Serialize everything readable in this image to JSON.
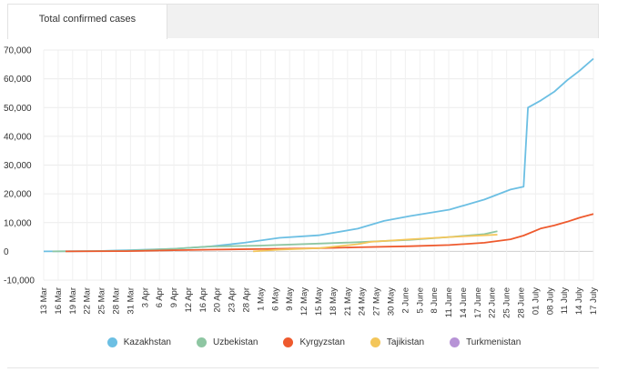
{
  "tabs": {
    "active_label": "Total confirmed cases"
  },
  "chart_data": {
    "type": "line",
    "ylim": [
      -10000,
      70000
    ],
    "yticks": [
      -10000,
      0,
      10000,
      20000,
      30000,
      40000,
      50000,
      60000,
      70000
    ],
    "ytick_labels": [
      "-10,000",
      "0",
      "10,000",
      "20,000",
      "30,000",
      "40,000",
      "50,000",
      "60,000",
      "70,000"
    ],
    "x_range": [
      "2020-03-13",
      "2020-07-17"
    ],
    "xtick_labels": [
      "13 Mar",
      "16 Mar",
      "19 Mar",
      "22 Mar",
      "25 Mar",
      "28 Mar",
      "31 Mar",
      "3 Apr",
      "6 Apr",
      "9 Apr",
      "12 Apr",
      "16 Apr",
      "20 Apr",
      "23 Apr",
      "28 Apr",
      "1 May",
      "6 May",
      "9 May",
      "12 May",
      "15 May",
      "18 May",
      "21 May",
      "24 May",
      "27 May",
      "30 May",
      "2 June",
      "5 June",
      "8 June",
      "11 June",
      "14 June",
      "17 June",
      "22 June",
      "25 June",
      "28 June",
      "01 July",
      "08 July",
      "11 July",
      "14 July",
      "17 July"
    ],
    "grid": true,
    "legend_position": "bottom",
    "series": [
      {
        "name": "Kazakhstan",
        "color": "#6cbfe3",
        "points": [
          [
            "2020-03-13",
            0
          ],
          [
            "2020-03-25",
            100
          ],
          [
            "2020-04-01",
            400
          ],
          [
            "2020-04-12",
            900
          ],
          [
            "2020-04-20",
            1700
          ],
          [
            "2020-04-28",
            3000
          ],
          [
            "2020-05-06",
            4700
          ],
          [
            "2020-05-15",
            5600
          ],
          [
            "2020-05-24",
            7900
          ],
          [
            "2020-05-30",
            10600
          ],
          [
            "2020-06-05",
            12300
          ],
          [
            "2020-06-14",
            14500
          ],
          [
            "2020-06-22",
            18000
          ],
          [
            "2020-06-28",
            21500
          ],
          [
            "2020-07-01",
            22500
          ],
          [
            "2020-07-02",
            50000
          ],
          [
            "2020-07-05",
            52500
          ],
          [
            "2020-07-08",
            55500
          ],
          [
            "2020-07-11",
            59500
          ],
          [
            "2020-07-14",
            63000
          ],
          [
            "2020-07-17",
            67000
          ]
        ]
      },
      {
        "name": "Uzbekistan",
        "color": "#8ec6a2",
        "points": [
          [
            "2020-03-15",
            0
          ],
          [
            "2020-04-01",
            200
          ],
          [
            "2020-04-12",
            900
          ],
          [
            "2020-04-20",
            1700
          ],
          [
            "2020-05-01",
            2000
          ],
          [
            "2020-05-15",
            2700
          ],
          [
            "2020-05-24",
            3200
          ],
          [
            "2020-06-05",
            4000
          ],
          [
            "2020-06-14",
            5000
          ],
          [
            "2020-06-22",
            6000
          ],
          [
            "2020-06-25",
            7000
          ]
        ]
      },
      {
        "name": "Kyrgyzstan",
        "color": "#ee5a2e",
        "points": [
          [
            "2020-03-18",
            0
          ],
          [
            "2020-04-01",
            100
          ],
          [
            "2020-04-12",
            400
          ],
          [
            "2020-04-20",
            600
          ],
          [
            "2020-05-06",
            900
          ],
          [
            "2020-05-15",
            1100
          ],
          [
            "2020-05-24",
            1400
          ],
          [
            "2020-06-05",
            1800
          ],
          [
            "2020-06-14",
            2200
          ],
          [
            "2020-06-22",
            3000
          ],
          [
            "2020-06-28",
            4200
          ],
          [
            "2020-07-01",
            5500
          ],
          [
            "2020-07-05",
            8000
          ],
          [
            "2020-07-08",
            9000
          ],
          [
            "2020-07-11",
            10300
          ],
          [
            "2020-07-14",
            11800
          ],
          [
            "2020-07-17",
            13000
          ]
        ]
      },
      {
        "name": "Tajikistan",
        "color": "#f3c65a",
        "points": [
          [
            "2020-04-30",
            0
          ],
          [
            "2020-05-06",
            600
          ],
          [
            "2020-05-15",
            1100
          ],
          [
            "2020-05-24",
            2500
          ],
          [
            "2020-05-27",
            3300
          ],
          [
            "2020-06-05",
            4200
          ],
          [
            "2020-06-14",
            5000
          ],
          [
            "2020-06-22",
            5600
          ],
          [
            "2020-06-25",
            5800
          ]
        ]
      },
      {
        "name": "Turkmenistan",
        "color": "#b793d6",
        "points": []
      }
    ]
  }
}
